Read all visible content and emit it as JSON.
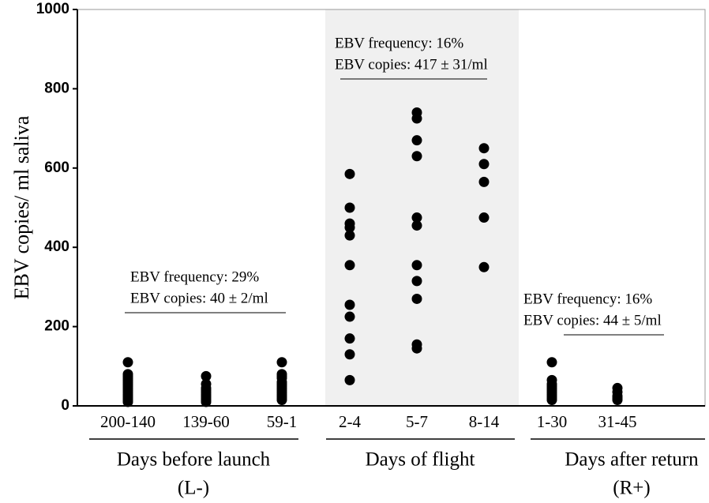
{
  "chart_data": {
    "type": "strip",
    "y_label": "EBV copies/ ml saliva",
    "categories": [
      "200-140",
      "139-60",
      "59-1",
      "2-4",
      "5-7",
      "8-14",
      "1-30",
      "31-45"
    ],
    "values": [
      [
        110,
        80,
        75,
        70,
        65,
        60,
        55,
        50,
        45,
        40,
        35,
        30,
        25,
        20,
        15,
        10
      ],
      [
        75,
        55,
        45,
        40,
        35,
        30,
        25,
        20,
        15,
        10
      ],
      [
        110,
        80,
        75,
        70,
        60,
        55,
        50,
        45,
        40,
        35,
        30,
        25,
        20,
        15
      ],
      [
        585,
        500,
        460,
        450,
        430,
        355,
        255,
        225,
        170,
        130,
        65
      ],
      [
        740,
        725,
        670,
        630,
        475,
        455,
        355,
        315,
        270,
        155,
        145
      ],
      [
        650,
        610,
        565,
        475,
        350
      ],
      [
        110,
        65,
        55,
        50,
        45,
        40,
        35,
        30,
        25,
        20,
        15
      ],
      [
        45,
        35,
        25,
        20,
        15
      ]
    ],
    "color": "#000000",
    "ylim": [
      0,
      1000
    ],
    "yticks": [
      0,
      200,
      400,
      600,
      800,
      1000
    ],
    "groups": [
      {
        "label": [
          "Days before launch",
          "(L-)"
        ],
        "annotation": [
          "EBV frequency: 29%",
          "EBV copies: 40 ± 2/ml"
        ]
      },
      {
        "label": [
          "Days of flight"
        ],
        "annotation": [
          "EBV frequency: 16%",
          "EBV copies: 417 ± 31/ml"
        ]
      },
      {
        "label": [
          "Days after return",
          "(R+)"
        ],
        "annotation": [
          "EBV frequency: 16%",
          "EBV copies: 44 ± 5/ml"
        ]
      }
    ]
  }
}
